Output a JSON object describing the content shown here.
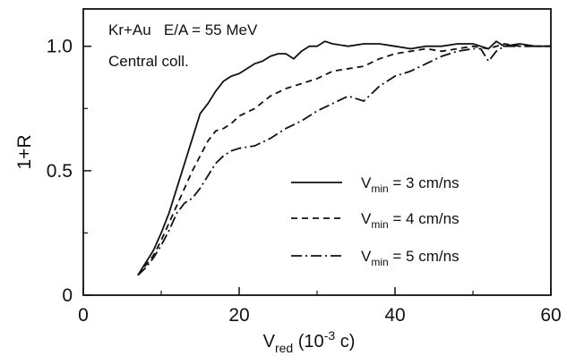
{
  "chart_data": {
    "type": "line",
    "annotations": {
      "line1": "Kr+Au   E/A = 55 MeV",
      "line2": "Central coll."
    },
    "xlabel": {
      "main": "V",
      "sub": "red",
      "tail_open": " (10",
      "sup": "-3",
      "tail_close": " c)"
    },
    "ylabel": "1+R",
    "xlim": [
      0,
      60
    ],
    "ylim": [
      0,
      1.15
    ],
    "xticks": [
      "0",
      "20",
      "40",
      "60"
    ],
    "yticks": [
      "0",
      "0.5",
      "1.0"
    ],
    "grid": false,
    "legend_position": "bottom-right",
    "series": [
      {
        "legend_prefix": "V",
        "legend_sub": "min",
        "legend_suffix": " = 3 cm/ns",
        "line_style": "solid",
        "x": [
          7,
          8,
          9,
          10,
          11,
          12,
          13,
          14,
          15,
          16,
          17,
          18,
          19,
          20,
          21,
          22,
          23,
          24,
          25,
          26,
          27,
          28,
          29,
          30,
          31,
          32,
          34,
          36,
          38,
          40,
          42,
          44,
          46,
          48,
          50,
          51,
          52,
          53,
          54,
          56,
          58,
          60
        ],
        "y": [
          0.08,
          0.13,
          0.18,
          0.25,
          0.33,
          0.43,
          0.53,
          0.63,
          0.73,
          0.77,
          0.82,
          0.86,
          0.88,
          0.89,
          0.91,
          0.93,
          0.94,
          0.96,
          0.97,
          0.97,
          0.95,
          0.98,
          1.0,
          1.0,
          1.02,
          1.01,
          1.0,
          1.01,
          1.01,
          1.0,
          0.99,
          1.0,
          1.0,
          1.01,
          1.01,
          1.0,
          0.99,
          1.02,
          1.0,
          1.01,
          1.0,
          1.0
        ]
      },
      {
        "legend_prefix": "V",
        "legend_sub": "min",
        "legend_suffix": " = 4 cm/ns",
        "line_style": "dashed",
        "x": [
          7,
          8,
          9,
          10,
          11,
          12,
          13,
          14,
          15,
          16,
          17,
          18,
          19,
          20,
          22,
          24,
          26,
          28,
          30,
          32,
          34,
          36,
          38,
          40,
          42,
          44,
          46,
          48,
          50,
          52,
          54,
          56,
          58,
          60
        ],
        "y": [
          0.08,
          0.12,
          0.16,
          0.22,
          0.29,
          0.36,
          0.43,
          0.5,
          0.56,
          0.62,
          0.66,
          0.67,
          0.69,
          0.72,
          0.75,
          0.8,
          0.83,
          0.85,
          0.87,
          0.9,
          0.91,
          0.92,
          0.95,
          0.97,
          0.98,
          0.99,
          0.98,
          0.99,
          1.0,
          0.99,
          1.01,
          1.0,
          1.0,
          1.0
        ]
      },
      {
        "legend_prefix": "V",
        "legend_sub": "min",
        "legend_suffix": " = 5 cm/ns",
        "line_style": "dashdot",
        "x": [
          7,
          8,
          9,
          10,
          11,
          12,
          13,
          14,
          15,
          16,
          17,
          18,
          19,
          20,
          22,
          24,
          26,
          28,
          30,
          32,
          34,
          36,
          38,
          40,
          42,
          44,
          46,
          48,
          50,
          51,
          52,
          53,
          54,
          56,
          58,
          60
        ],
        "y": [
          0.08,
          0.11,
          0.15,
          0.2,
          0.26,
          0.33,
          0.37,
          0.39,
          0.43,
          0.48,
          0.53,
          0.56,
          0.58,
          0.59,
          0.6,
          0.63,
          0.67,
          0.7,
          0.74,
          0.77,
          0.8,
          0.78,
          0.84,
          0.88,
          0.9,
          0.93,
          0.96,
          0.98,
          0.99,
          0.99,
          0.94,
          0.98,
          1.0,
          1.0,
          1.0,
          1.0
        ]
      }
    ]
  }
}
